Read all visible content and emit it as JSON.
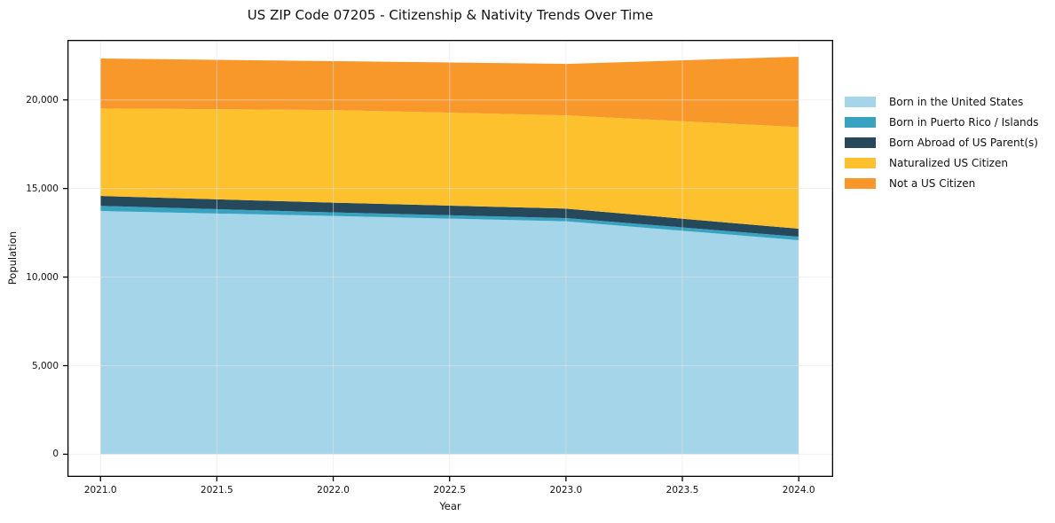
{
  "chart_data": {
    "type": "area",
    "stacked": true,
    "title": "US ZIP Code 07205 - Citizenship & Nativity Trends Over Time",
    "xlabel": "Year",
    "ylabel": "Population",
    "x": [
      2021,
      2022,
      2023,
      2024
    ],
    "series": [
      {
        "name": "Born in the United States",
        "color": "#a5d5e9",
        "values": [
          13730,
          13450,
          13150,
          12080
        ]
      },
      {
        "name": "Born in Puerto Rico / Islands",
        "color": "#38a3c1",
        "values": [
          290,
          200,
          180,
          200
        ]
      },
      {
        "name": "Born Abroad of US Parent(s)",
        "color": "#25495a",
        "values": [
          560,
          550,
          535,
          450
        ]
      },
      {
        "name": "Naturalized US Citizen",
        "color": "#fcc12d",
        "values": [
          4940,
          5230,
          5265,
          5735
        ]
      },
      {
        "name": "Not a US Citizen",
        "color": "#f8982a",
        "values": [
          2820,
          2760,
          2905,
          3975
        ]
      }
    ],
    "x_ticks": [
      2021,
      2021.5,
      2022,
      2022.5,
      2023,
      2023.5,
      2024
    ],
    "x_tick_labels": [
      "2021.0",
      "2021.5",
      "2022.0",
      "2022.5",
      "2023.0",
      "2023.5",
      "2024.0"
    ],
    "y_ticks": [
      0,
      5000,
      10000,
      15000,
      20000
    ],
    "y_tick_labels": [
      "0",
      "5,000",
      "10,000",
      "15,000",
      "20,000"
    ],
    "xlim": [
      2020.858,
      2024.148
    ],
    "ylim": [
      -1280,
      23390
    ],
    "grid": true,
    "grid_color": "#e6e6e6",
    "spine_color": "#000000",
    "legend_position": "outside-right"
  }
}
